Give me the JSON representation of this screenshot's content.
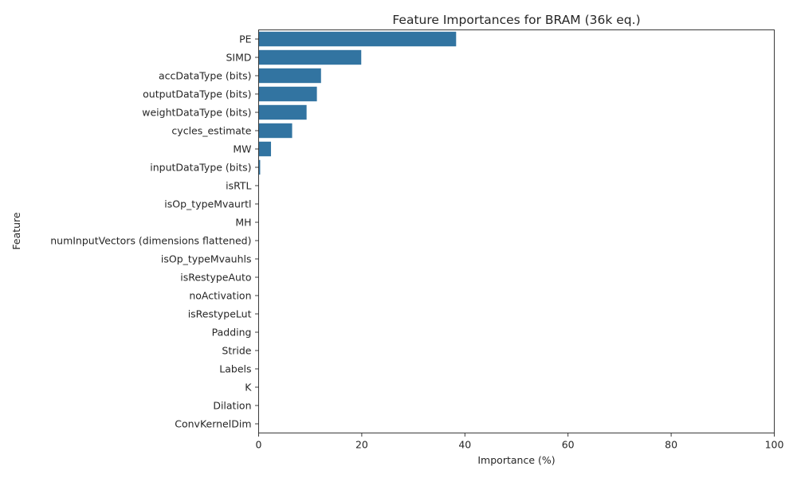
{
  "chart_data": {
    "type": "bar",
    "orientation": "horizontal",
    "title": "Feature Importances for BRAM (36k eq.)",
    "xlabel": "Importance (%)",
    "ylabel": "Feature",
    "xlim": [
      0,
      100
    ],
    "x_ticks": [
      0,
      20,
      40,
      60,
      80,
      100
    ],
    "grid": false,
    "bar_color": "#3274a1",
    "categories": [
      "PE",
      "SIMD",
      "accDataType (bits)",
      "outputDataType (bits)",
      "weightDataType (bits)",
      "cycles_estimate",
      "MW",
      "inputDataType (bits)",
      "isRTL",
      "isOp_typeMvaurtl",
      "MH",
      "numInputVectors (dimensions flattened)",
      "isOp_typeMvauhls",
      "isRestypeAuto",
      "noActivation",
      "isRestypeLut",
      "Padding",
      "Stride",
      "Labels",
      "K",
      "Dilation",
      "ConvKernelDim"
    ],
    "values": [
      38.3,
      19.9,
      12.1,
      11.3,
      9.3,
      6.5,
      2.4,
      0.3,
      0,
      0,
      0,
      0,
      0,
      0,
      0,
      0,
      0,
      0,
      0,
      0,
      0,
      0
    ]
  }
}
